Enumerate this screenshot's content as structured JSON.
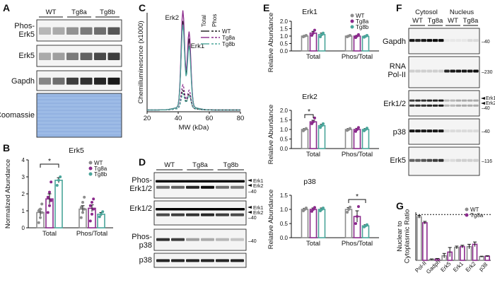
{
  "colors": {
    "wt": "#8c8c8c",
    "tg8a": "#8b2a8c",
    "tg8b": "#4aa59a",
    "dark": "#1a1a1a",
    "blot_bg": "#f4f4f4",
    "coomassie": "#9dbbe6"
  },
  "panelA": {
    "letter": "A",
    "groups": [
      "WT",
      "Tg8a",
      "Tg8b"
    ],
    "rows": [
      "Phos-\nErk5",
      "Erk5",
      "Gapdh",
      "Coomassie"
    ]
  },
  "panelB": {
    "letter": "B",
    "title": "Erk5",
    "ylabel": "Normalized Abundance",
    "legend": [
      "WT",
      "Tg8a",
      "Tg8b"
    ],
    "sig": "*"
  },
  "panelC": {
    "letter": "C",
    "ylabel": "Chemilluminescnce (x1000)",
    "xlabel": "MW (kDa)",
    "legend_headers": [
      "Total",
      "Phos"
    ],
    "legend": [
      "WT",
      "Tg8a",
      "Tg8b"
    ],
    "peak_labels": [
      "Erk2",
      "Erk1"
    ]
  },
  "panelD": {
    "letter": "D",
    "groups": [
      "WT",
      "Tg8a",
      "Tg8b"
    ],
    "rows": [
      "Phos-\nErk1/2",
      "Erk1/2",
      "Phos-\np38",
      "p38"
    ],
    "markers": [
      "Erk1",
      "Erk2",
      "40"
    ]
  },
  "panelE": {
    "letter": "E",
    "ylabel": "Relative Abundance",
    "legend": [
      "WT",
      "Tg8a",
      "Tg8b"
    ],
    "sig": "*"
  },
  "panelF": {
    "letter": "F",
    "headers": [
      "Cytosol",
      "Nucleus"
    ],
    "groups": [
      "WT",
      "Tg8a",
      "WT",
      "Tg8a"
    ],
    "rows": [
      "Gapdh",
      "RNA\nPol-II",
      "Erk1/2",
      "p38",
      "Erk5"
    ],
    "markers": [
      "40",
      "230",
      "Erk1",
      "Erk2",
      "40",
      "40",
      "116"
    ]
  },
  "panelG": {
    "letter": "G",
    "ylabel": "Nuclear to\nCytoplasmic Ratio",
    "legend": [
      "WT",
      "Tg8a"
    ]
  },
  "chart_data": [
    {
      "type": "bar",
      "panel": "B",
      "title": "Erk5",
      "ylabel": "Normalized Abundance",
      "categories": [
        "Total",
        "Phos/Total"
      ],
      "ylim": [
        0,
        4
      ],
      "yticks": [
        0,
        1,
        2,
        3,
        4
      ],
      "series": [
        {
          "name": "WT",
          "values": [
            0.9,
            1.1
          ],
          "errors": [
            0.2,
            0.2
          ],
          "points": [
            [
              0.3,
              0.6,
              0.9,
              1.0,
              1.1,
              1.4
            ],
            [
              0.6,
              0.9,
              1.1,
              1.2,
              1.5,
              1.8
            ]
          ]
        },
        {
          "name": "Tg8a",
          "values": [
            1.7,
            1.15
          ],
          "errors": [
            0.3,
            0.2
          ],
          "points": [
            [
              0.9,
              1.3,
              1.6,
              1.8,
              2.1,
              2.7
            ],
            [
              0.4,
              0.8,
              1.1,
              1.3,
              1.5,
              1.7
            ]
          ]
        },
        {
          "name": "Tg8b",
          "values": [
            2.8,
            0.8
          ],
          "errors": [
            0.15,
            0.1
          ],
          "points": [
            [
              2.5,
              2.8,
              3.0
            ],
            [
              0.65,
              0.8,
              0.95
            ]
          ]
        }
      ],
      "significance": [
        {
          "from": [
            0,
            0
          ],
          "to": [
            0,
            2
          ],
          "label": "*"
        }
      ]
    },
    {
      "type": "line",
      "panel": "C",
      "xlabel": "MW (kDa)",
      "ylabel": "Chemilluminescnce (x1000)",
      "xlim": [
        20,
        80
      ],
      "xticks": [
        20,
        40,
        60,
        80
      ],
      "ylim": [
        0,
        28
      ],
      "series": [
        {
          "name": "WT",
          "style": "solid",
          "color": "#1a1a1a",
          "peaks": [
            [
              43,
              24
            ],
            [
              47,
              19
            ]
          ]
        },
        {
          "name": "Tg8a",
          "style": "solid",
          "color": "#8b2a8c",
          "peaks": [
            [
              43,
              27
            ],
            [
              47,
              21
            ]
          ]
        },
        {
          "name": "Tg8b",
          "style": "solid",
          "color": "#4aa59a",
          "peaks": [
            [
              43,
              23
            ],
            [
              47,
              17
            ]
          ]
        },
        {
          "name": "WT",
          "style": "dashed",
          "color": "#1a1a1a",
          "peaks": [
            [
              43,
              5
            ],
            [
              47,
              4
            ]
          ]
        },
        {
          "name": "Tg8a",
          "style": "dashed",
          "color": "#8b2a8c",
          "peaks": [
            [
              43,
              6.5
            ],
            [
              47,
              5
            ]
          ]
        },
        {
          "name": "Tg8b",
          "style": "dashed",
          "color": "#4aa59a",
          "peaks": [
            [
              43,
              4
            ],
            [
              47,
              3.5
            ]
          ]
        }
      ]
    },
    {
      "type": "bar",
      "panel": "E",
      "title": "Erk1",
      "ylabel": "Relative Abundance",
      "categories": [
        "Total",
        "Phos/Total"
      ],
      "ylim": [
        0,
        2.0
      ],
      "yticks": [
        0.0,
        0.5,
        1.0,
        1.5,
        2.0
      ],
      "series": [
        {
          "name": "WT",
          "values": [
            1.0,
            1.0
          ],
          "errors": [
            0.05,
            0.04
          ],
          "points": [
            [
              0.95,
              1.0,
              1.05
            ],
            [
              0.95,
              1.0,
              1.05
            ]
          ]
        },
        {
          "name": "Tg8a",
          "values": [
            1.2,
            1.0
          ],
          "errors": [
            0.12,
            0.05
          ],
          "points": [
            [
              1.05,
              1.2,
              1.4
            ],
            [
              0.9,
              1.0,
              1.1
            ]
          ]
        },
        {
          "name": "Tg8b",
          "values": [
            1.1,
            0.98
          ],
          "errors": [
            0.1,
            0.05
          ],
          "points": [
            [
              0.95,
              1.1,
              1.2
            ],
            [
              0.92,
              0.98,
              1.05
            ]
          ]
        }
      ]
    },
    {
      "type": "bar",
      "panel": "E",
      "title": "Erk2",
      "ylabel": "Relative Abundance",
      "categories": [
        "Total",
        "Phos/Total"
      ],
      "ylim": [
        0,
        2.0
      ],
      "yticks": [
        0.0,
        0.5,
        1.0,
        1.5,
        2.0
      ],
      "series": [
        {
          "name": "WT",
          "values": [
            1.0,
            1.0
          ],
          "errors": [
            0.05,
            0.05
          ],
          "points": [
            [
              0.93,
              1.0,
              1.05
            ],
            [
              0.95,
              1.0,
              1.05
            ]
          ]
        },
        {
          "name": "Tg8a",
          "values": [
            1.4,
            1.0
          ],
          "errors": [
            0.08,
            0.06
          ],
          "points": [
            [
              1.3,
              1.4,
              1.6
            ],
            [
              0.9,
              1.0,
              1.1
            ]
          ]
        },
        {
          "name": "Tg8b",
          "values": [
            1.2,
            1.0
          ],
          "errors": [
            0.07,
            0.05
          ],
          "points": [
            [
              1.1,
              1.2,
              1.3
            ],
            [
              0.93,
              1.0,
              1.07
            ]
          ]
        }
      ],
      "significance": [
        {
          "from": [
            0,
            0
          ],
          "to": [
            0,
            1
          ],
          "label": "*"
        }
      ]
    },
    {
      "type": "bar",
      "panel": "E",
      "title": "p38",
      "ylabel": "Relative Abundance",
      "categories": [
        "Total",
        "Phos/Total"
      ],
      "ylim": [
        0,
        1.5
      ],
      "yticks": [
        0.0,
        0.5,
        1.0,
        1.5
      ],
      "series": [
        {
          "name": "WT",
          "values": [
            1.0,
            1.0
          ],
          "errors": [
            0.04,
            0.06
          ],
          "points": [
            [
              0.95,
              1.0,
              1.05
            ],
            [
              0.9,
              1.0,
              1.08
            ]
          ]
        },
        {
          "name": "Tg8a",
          "values": [
            1.0,
            0.75
          ],
          "errors": [
            0.05,
            0.2
          ],
          "points": [
            [
              0.93,
              1.0,
              1.07
            ],
            [
              0.5,
              0.75,
              1.1
            ]
          ]
        },
        {
          "name": "Tg8b",
          "values": [
            1.0,
            0.42
          ],
          "errors": [
            0.05,
            0.04
          ],
          "points": [
            [
              0.95,
              1.0,
              1.05
            ],
            [
              0.38,
              0.42,
              0.46
            ]
          ]
        }
      ],
      "significance": [
        {
          "from": [
            1,
            0
          ],
          "to": [
            1,
            2
          ],
          "label": "*"
        }
      ]
    },
    {
      "type": "bar",
      "panel": "G",
      "ylabel": "Nuclear to Cytoplasmic Ratio",
      "categories": [
        "Pol-II",
        "Gadph",
        "Erk5",
        "Erk1",
        "Erk2",
        "p38"
      ],
      "ylim": [
        0,
        1.05
      ],
      "reference_line": 1.0,
      "series": [
        {
          "name": "WT",
          "values": [
            0.95,
            0.02,
            0.1,
            0.28,
            0.3,
            0.08
          ],
          "errors": [
            0.03,
            0.01,
            0.05,
            0.03,
            0.05,
            0.01
          ]
        },
        {
          "name": "Tg8a",
          "values": [
            0.82,
            0.03,
            0.18,
            0.3,
            0.35,
            0.09
          ],
          "errors": [
            0.03,
            0.01,
            0.1,
            0.03,
            0.05,
            0.01
          ]
        }
      ]
    }
  ]
}
